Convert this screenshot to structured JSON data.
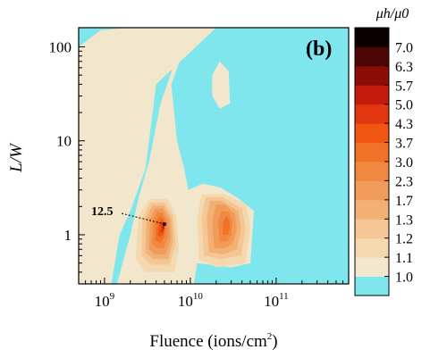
{
  "chart_data": {
    "type": "heatmap",
    "title": "",
    "panel_label": "(b)",
    "xlabel": "Fluence (ions/cm",
    "xlabel_sup": "2",
    "xlabel_close": ")",
    "ylabel": "L/W",
    "colorbar_label": "μh/μ0",
    "x_scale": "log",
    "y_scale": "log",
    "xlim": [
      500000000.0,
      700000000000.0
    ],
    "ylim": [
      0.3,
      160
    ],
    "x_ticks": [
      {
        "value": 1000000000.0,
        "base": "10",
        "exp": "9"
      },
      {
        "value": 10000000000.0,
        "base": "10",
        "exp": "10"
      },
      {
        "value": 100000000000.0,
        "base": "10",
        "exp": "11"
      }
    ],
    "y_ticks": [
      {
        "value": 1,
        "label": "1"
      },
      {
        "value": 10,
        "label": "10"
      },
      {
        "value": 100,
        "label": "100"
      }
    ],
    "colorbar_levels": [
      "1.0",
      "1.1",
      "1.2",
      "1.3",
      "1.7",
      "2.3",
      "3.0",
      "3.7",
      "4.3",
      "5.0",
      "5.7",
      "6.3",
      "7.0"
    ],
    "colorbar_colors": [
      "#80e6ee",
      "#f2e7cd",
      "#f4d8ae",
      "#f3c693",
      "#f2b075",
      "#f19b5a",
      "#f0883f",
      "#f17126",
      "#f05612",
      "#e23610",
      "#c41a0c",
      "#8c0c08",
      "#4c0505",
      "#0a0000"
    ],
    "annotation": {
      "label": "12.5",
      "x": 5000000000.0,
      "y": 1.3
    },
    "contour_regions": [
      {
        "level": 1,
        "points": [
          [
            500000000.0,
            100
          ],
          [
            900000000.0,
            150
          ],
          [
            2000000000.0,
            160
          ],
          [
            20000000000.0,
            160
          ],
          [
            4000000000.0,
            40
          ],
          [
            3000000000.0,
            5
          ],
          [
            2000000000.0,
            1.8
          ],
          [
            1500000000.0,
            1
          ],
          [
            1200000000.0,
            0.3
          ],
          [
            500000000.0,
            0.3
          ]
        ]
      },
      {
        "level": 1,
        "points": [
          [
            1400000000.0,
            0.3
          ],
          [
            2000000000.0,
            1
          ],
          [
            2500000000.0,
            2.5
          ],
          [
            3300000000.0,
            6
          ],
          [
            4500000000.0,
            25
          ],
          [
            7000000000.0,
            80
          ],
          [
            9000000000.0,
            110
          ],
          [
            6000000000.0,
            40
          ],
          [
            7000000000.0,
            10
          ],
          [
            8500000000.0,
            5
          ],
          [
            9500000000.0,
            3
          ],
          [
            12000000000.0,
            0.5
          ],
          [
            11000000000.0,
            0.3
          ]
        ]
      },
      {
        "level": 1,
        "points": [
          [
            3000000000.0,
            2.7
          ],
          [
            4000000000.0,
            4
          ],
          [
            3800000000.0,
            1.8
          ],
          [
            3000000000.0,
            1.5
          ]
        ]
      },
      {
        "level": 1,
        "points": [
          [
            18000000000.0,
            50
          ],
          [
            22000000000.0,
            70
          ],
          [
            28000000000.0,
            55
          ],
          [
            29000000000.0,
            25
          ],
          [
            22000000000.0,
            22
          ],
          [
            18000000000.0,
            30
          ]
        ]
      },
      {
        "level": 1,
        "points": [
          [
            9500000000.0,
            3
          ],
          [
            14000000000.0,
            3.5
          ],
          [
            22000000000.0,
            3.2
          ],
          [
            35000000000.0,
            2.5
          ],
          [
            55000000000.0,
            1.8
          ],
          [
            50000000000.0,
            0.5
          ],
          [
            30000000000.0,
            0.45
          ],
          [
            12000000000.0,
            0.5
          ]
        ]
      },
      {
        "level": 2,
        "points": [
          [
            2300000000.0,
            0.55
          ],
          [
            2500000000.0,
            1.6
          ],
          [
            3300000000.0,
            2.4
          ],
          [
            5400000000.0,
            2.4
          ],
          [
            6800000000.0,
            1.6
          ],
          [
            7400000000.0,
            0.7
          ],
          [
            6500000000.0,
            0.4
          ],
          [
            3000000000.0,
            0.4
          ]
        ]
      },
      {
        "level": 2,
        "points": [
          [
            12500000000.0,
            0.55
          ],
          [
            12000000000.0,
            1.5
          ],
          [
            13500000000.0,
            2.7
          ],
          [
            25000000000.0,
            2.7
          ],
          [
            45000000000.0,
            2.1
          ],
          [
            50000000000.0,
            1.2
          ],
          [
            44000000000.0,
            0.5
          ],
          [
            20000000000.0,
            0.45
          ]
        ]
      },
      {
        "level": 3,
        "points": [
          [
            2700000000.0,
            0.6
          ],
          [
            2800000000.0,
            1.5
          ],
          [
            3400000000.0,
            2.2
          ],
          [
            5000000000.0,
            2.2
          ],
          [
            6300000000.0,
            1.6
          ],
          [
            6800000000.0,
            0.8
          ],
          [
            5700000000.0,
            0.48
          ],
          [
            3500000000.0,
            0.48
          ]
        ]
      },
      {
        "level": 3,
        "points": [
          [
            14500000000.0,
            0.6
          ],
          [
            13500000000.0,
            1.5
          ],
          [
            15000000000.0,
            2.5
          ],
          [
            24000000000.0,
            2.5
          ],
          [
            40000000000.0,
            1.9
          ],
          [
            44000000000.0,
            1.2
          ],
          [
            39000000000.0,
            0.6
          ],
          [
            22000000000.0,
            0.55
          ]
        ]
      },
      {
        "level": 4,
        "points": [
          [
            3000000000.0,
            0.65
          ],
          [
            3100000000.0,
            1.5
          ],
          [
            3600000000.0,
            2.05
          ],
          [
            4900000000.0,
            2.05
          ],
          [
            6000000000.0,
            1.5
          ],
          [
            6300000000.0,
            0.85
          ],
          [
            5500000000.0,
            0.55
          ],
          [
            3700000000.0,
            0.55
          ]
        ]
      },
      {
        "level": 4,
        "points": [
          [
            16500000000.0,
            0.65
          ],
          [
            15500000000.0,
            1.5
          ],
          [
            17000000000.0,
            2.3
          ],
          [
            23000000000.0,
            2.3
          ],
          [
            36000000000.0,
            1.8
          ],
          [
            39000000000.0,
            1.2
          ],
          [
            35000000000.0,
            0.7
          ],
          [
            24000000000.0,
            0.62
          ]
        ]
      },
      {
        "level": 5,
        "points": [
          [
            3300000000.0,
            0.7
          ],
          [
            3400000000.0,
            1.5
          ],
          [
            3900000000.0,
            1.9
          ],
          [
            4800000000.0,
            1.9
          ],
          [
            5700000000.0,
            1.45
          ],
          [
            5900000000.0,
            0.9
          ],
          [
            5200000000.0,
            0.62
          ],
          [
            3900000000.0,
            0.62
          ]
        ]
      },
      {
        "level": 5,
        "points": [
          [
            19000000000.0,
            0.72
          ],
          [
            18000000000.0,
            1.4
          ],
          [
            20000000000.0,
            2.1
          ],
          [
            25000000000.0,
            2.1
          ],
          [
            33000000000.0,
            1.7
          ],
          [
            35000000000.0,
            1.15
          ],
          [
            31000000000.0,
            0.8
          ],
          [
            25000000000.0,
            0.72
          ]
        ]
      },
      {
        "level": 6,
        "points": [
          [
            3600000000.0,
            0.78
          ],
          [
            3700000000.0,
            1.45
          ],
          [
            4100000000.0,
            1.75
          ],
          [
            4800000000.0,
            1.7
          ],
          [
            5400000000.0,
            1.35
          ],
          [
            5500000000.0,
            0.95
          ],
          [
            4900000000.0,
            0.72
          ],
          [
            4100000000.0,
            0.72
          ]
        ]
      },
      {
        "level": 6,
        "points": [
          [
            22000000000.0,
            0.85
          ],
          [
            21000000000.0,
            1.35
          ],
          [
            23000000000.0,
            1.8
          ],
          [
            28000000000.0,
            1.75
          ],
          [
            31000000000.0,
            1.4
          ],
          [
            30000000000.0,
            1.0
          ],
          [
            27000000000.0,
            0.85
          ]
        ]
      },
      {
        "level": 7,
        "points": [
          [
            3900000000.0,
            0.88
          ],
          [
            4000000000.0,
            1.4
          ],
          [
            4400000000.0,
            1.6
          ],
          [
            4900000000.0,
            1.5
          ],
          [
            5100000000.0,
            1.2
          ],
          [
            5000000000.0,
            0.95
          ],
          [
            4500000000.0,
            0.82
          ]
        ]
      },
      {
        "level": 7,
        "points": [
          [
            24000000000.0,
            1.0
          ],
          [
            24000000000.0,
            1.35
          ],
          [
            26000000000.0,
            1.55
          ],
          [
            28500000000.0,
            1.45
          ],
          [
            29000000000.0,
            1.15
          ],
          [
            27000000000.0,
            1.0
          ]
        ]
      },
      {
        "level": 8,
        "points": [
          [
            4200000000.0,
            0.98
          ],
          [
            4300000000.0,
            1.35
          ],
          [
            4700000000.0,
            1.45
          ],
          [
            5000000000.0,
            1.3
          ],
          [
            4900000000.0,
            1.05
          ],
          [
            4600000000.0,
            0.95
          ]
        ]
      },
      {
        "level": 9,
        "points": [
          [
            4500000000.0,
            1.08
          ],
          [
            4600000000.0,
            1.32
          ],
          [
            4850000000.0,
            1.35
          ],
          [
            5000000000.0,
            1.2
          ],
          [
            4800000000.0,
            1.05
          ]
        ]
      },
      {
        "level": 10,
        "points": [
          [
            4750000000.0,
            1.15
          ],
          [
            4800000000.0,
            1.3
          ],
          [
            4950000000.0,
            1.28
          ],
          [
            4950000000.0,
            1.15
          ]
        ]
      }
    ]
  }
}
